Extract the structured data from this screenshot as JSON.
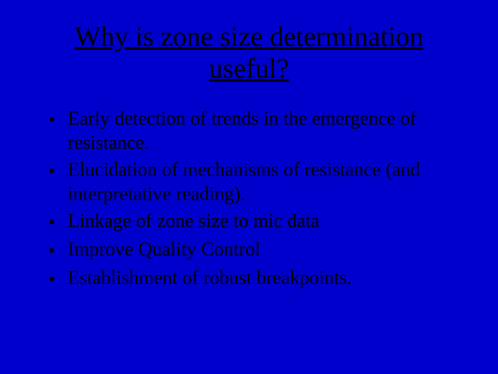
{
  "background_color": "#0000cc",
  "text_color": "#000000",
  "font_family": "Times New Roman",
  "title": {
    "text": "Why is zone size determination useful?",
    "fontsize": 40,
    "underline": true,
    "align": "center"
  },
  "bullets": {
    "fontsize": 28,
    "marker": "•",
    "items": [
      "Early detection of  trends in the emergence of resistance.",
      "Elucidation of mechanisms of resistance (and interpretative reading).",
      "Linkage of zone size to mic data",
      "Improve Quality Control",
      "Establishment of robust breakpoints."
    ]
  }
}
